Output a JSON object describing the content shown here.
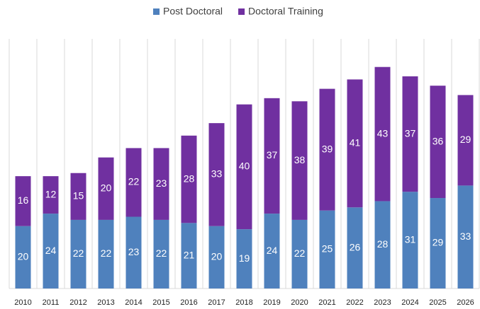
{
  "chart_data": {
    "type": "stacked_bar",
    "categories": [
      "2010",
      "2011",
      "2012",
      "2013",
      "2014",
      "2015",
      "2016",
      "2017",
      "2018",
      "2019",
      "2020",
      "2021",
      "2022",
      "2023",
      "2024",
      "2025",
      "2026"
    ],
    "series": [
      {
        "name": "Post Doctoral",
        "color": "#4f81bd",
        "values": [
          20,
          24,
          22,
          22,
          23,
          22,
          21,
          20,
          19,
          24,
          22,
          25,
          26,
          28,
          31,
          29,
          33
        ]
      },
      {
        "name": "Doctoral Training",
        "color": "#7030a0",
        "values": [
          16,
          12,
          15,
          20,
          22,
          23,
          28,
          33,
          40,
          37,
          38,
          39,
          41,
          43,
          37,
          36,
          29
        ]
      }
    ],
    "ylim": [
      0,
      80
    ],
    "legend": "top"
  }
}
